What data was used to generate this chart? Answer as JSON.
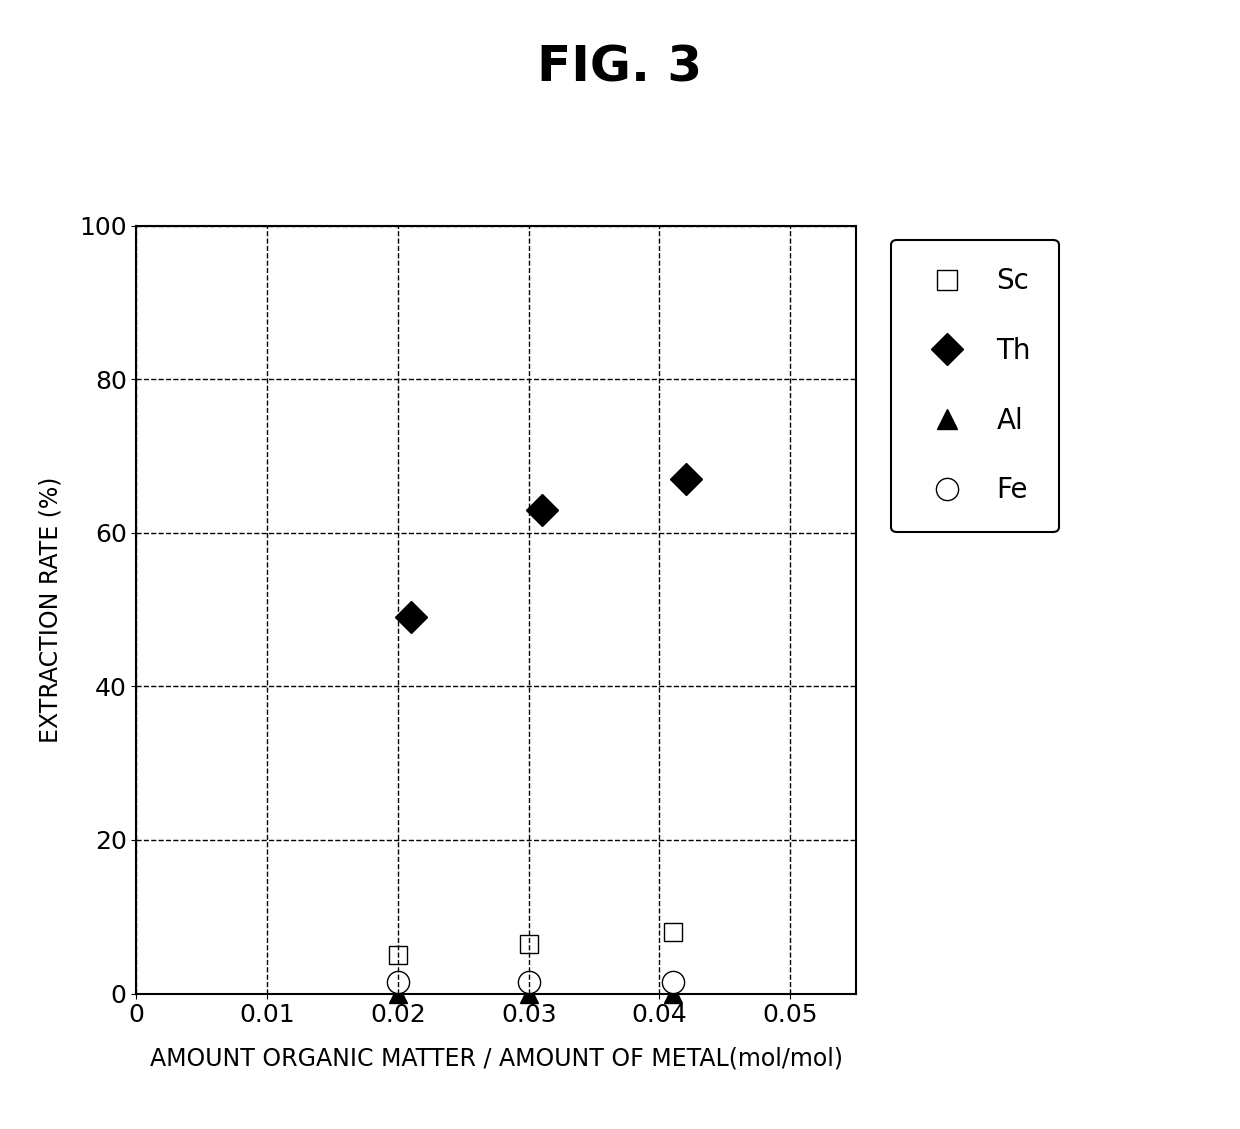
{
  "title": "FIG. 3",
  "xlabel": "AMOUNT ORGANIC MATTER / AMOUNT OF METAL(mol/mol)",
  "ylabel": "EXTRACTION RATE (%)",
  "xlim": [
    0,
    0.055
  ],
  "ylim": [
    0,
    100
  ],
  "xticks": [
    0,
    0.01,
    0.02,
    0.03,
    0.04,
    0.05
  ],
  "yticks": [
    0,
    20,
    40,
    60,
    80,
    100
  ],
  "series": {
    "Sc": {
      "x": [
        0.02,
        0.03,
        0.041
      ],
      "y": [
        5.0,
        6.5,
        8.0
      ],
      "marker": "s",
      "color": "black",
      "facecolor": "white",
      "markersize": 13,
      "linewidth": 0
    },
    "Th": {
      "x": [
        0.021,
        0.031,
        0.042
      ],
      "y": [
        49.0,
        63.0,
        67.0
      ],
      "marker": "D",
      "color": "black",
      "facecolor": "black",
      "markersize": 16,
      "linewidth": 0
    },
    "Al": {
      "x": [
        0.02,
        0.03,
        0.041
      ],
      "y": [
        0.0,
        0.0,
        0.0
      ],
      "marker": "^",
      "color": "black",
      "facecolor": "black",
      "markersize": 13,
      "linewidth": 0
    },
    "Fe": {
      "x": [
        0.02,
        0.03,
        0.041
      ],
      "y": [
        1.5,
        1.5,
        1.5
      ],
      "marker": "o",
      "color": "black",
      "facecolor": "white",
      "markersize": 16,
      "linewidth": 0
    }
  },
  "grid_color": "#000000",
  "background_color": "#ffffff",
  "title_fontsize": 36,
  "axis_label_fontsize": 17,
  "tick_fontsize": 18,
  "legend_fontsize": 20
}
